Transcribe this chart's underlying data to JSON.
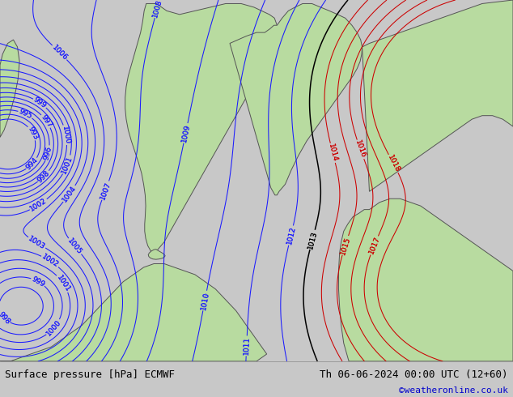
{
  "title_left": "Surface pressure [hPa] ECMWF",
  "title_right": "Th 06-06-2024 00:00 UTC (12+60)",
  "watermark": "©weatheronline.co.uk",
  "sea_color": "#e8e8e8",
  "land_color": "#b8dba0",
  "fig_width": 6.34,
  "fig_height": 4.9,
  "dpi": 100,
  "blue_levels": [
    993,
    994,
    995,
    996,
    997,
    998,
    999,
    1000,
    1001,
    1002,
    1003,
    1004,
    1005,
    1006,
    1007,
    1008,
    1009,
    1010,
    1011,
    1012
  ],
  "red_levels": [
    1014,
    1015,
    1016,
    1017,
    1018
  ],
  "black_levels": [
    1013
  ],
  "label_fontsize": 6.5,
  "bottom_bar_color": "#c8c8c8",
  "title_fontsize": 9,
  "watermark_fontsize": 8
}
